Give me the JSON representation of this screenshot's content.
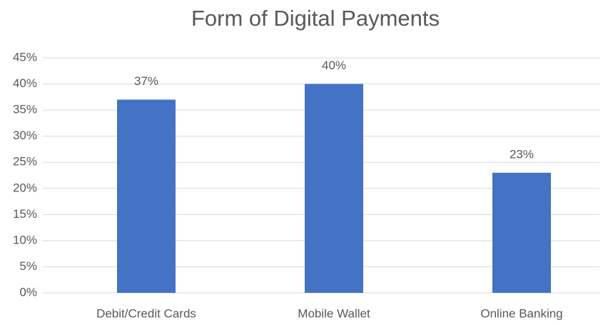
{
  "chart_data": {
    "type": "bar",
    "title": "Form of Digital Payments",
    "categories": [
      "Debit/Credit Cards",
      "Mobile Wallet",
      "Online Banking"
    ],
    "values": [
      37,
      40,
      23
    ],
    "value_labels": [
      "37%",
      "40%",
      "23%"
    ],
    "color": "#4472c4",
    "ylim": [
      0,
      45
    ],
    "yticks": [
      {
        "value": 0,
        "label": "0%"
      },
      {
        "value": 5,
        "label": "5%"
      },
      {
        "value": 10,
        "label": "10%"
      },
      {
        "value": 15,
        "label": "15%"
      },
      {
        "value": 20,
        "label": "20%"
      },
      {
        "value": 25,
        "label": "25%"
      },
      {
        "value": 30,
        "label": "30%"
      },
      {
        "value": 35,
        "label": "35%"
      },
      {
        "value": 40,
        "label": "40%"
      },
      {
        "value": 45,
        "label": "45%"
      }
    ],
    "grid": true
  }
}
